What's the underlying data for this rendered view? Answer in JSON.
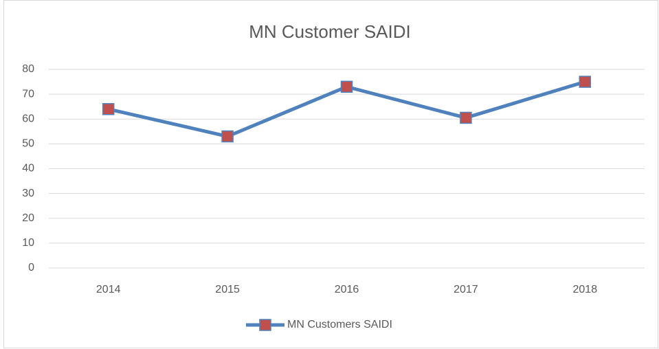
{
  "chart_data": {
    "type": "line",
    "title": "MN Customer SAIDI",
    "categories": [
      "2014",
      "2015",
      "2016",
      "2017",
      "2018"
    ],
    "series": [
      {
        "name": "MN Customers SAIDI",
        "color": "#4f81bd",
        "marker_color": "#c0504d",
        "values": [
          64,
          53,
          73,
          60.5,
          75
        ]
      }
    ],
    "ylim": [
      0,
      80
    ],
    "yticks": [
      0,
      10,
      20,
      30,
      40,
      50,
      60,
      70,
      80
    ],
    "grid": true,
    "legend": "bottom"
  }
}
